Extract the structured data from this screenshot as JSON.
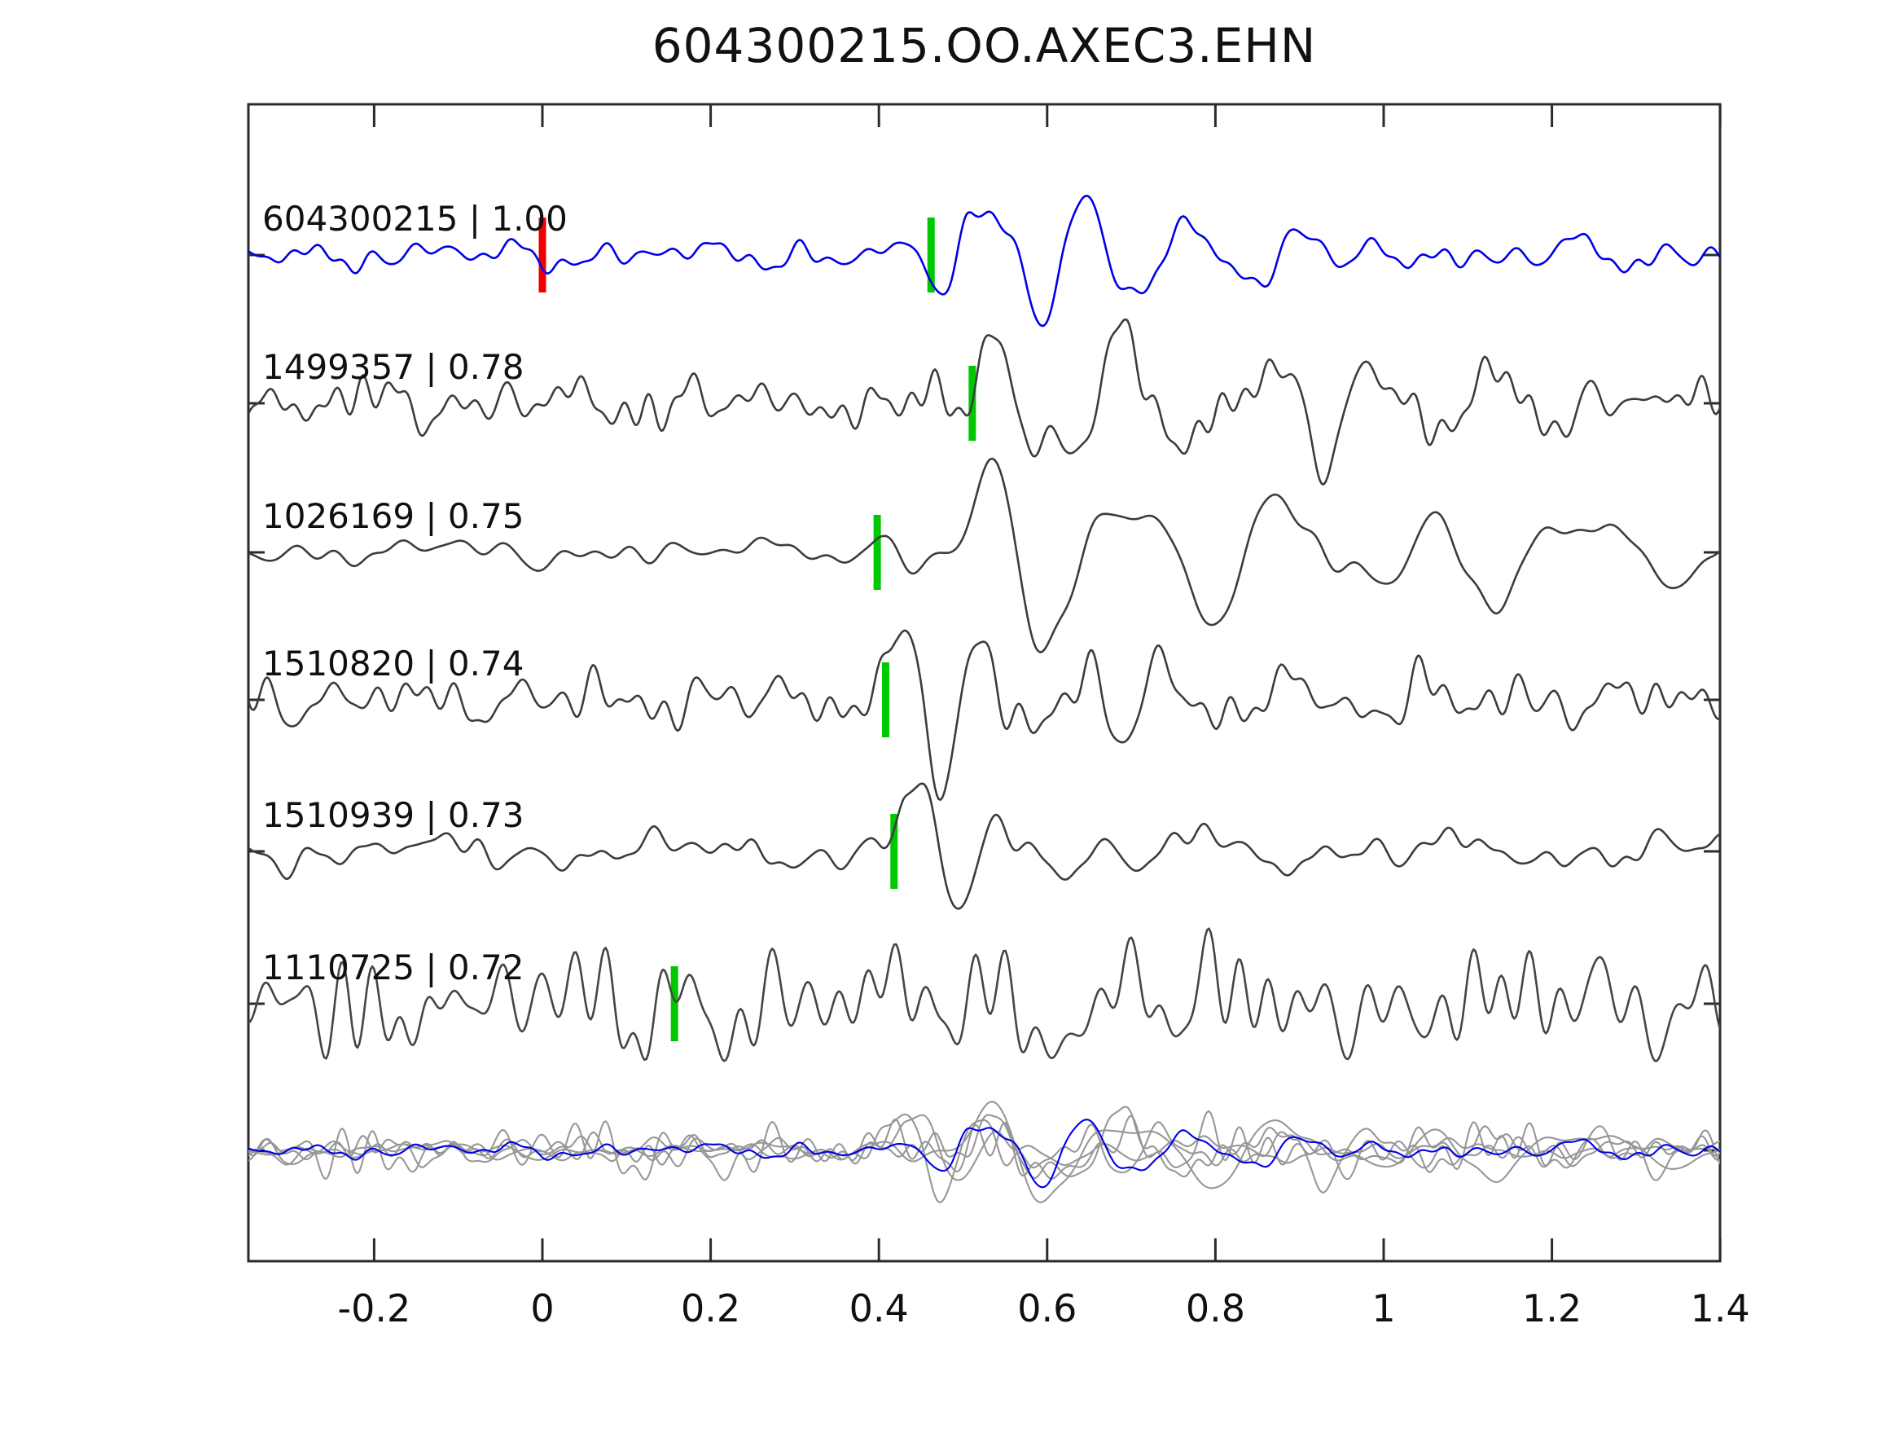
{
  "title": "604300215.OO.AXEC3.EHN",
  "chart_data": {
    "type": "line",
    "subtype": "seismic-waveform-stack",
    "x_range": [
      -0.3495,
      1.4
    ],
    "x_ticks": [
      {
        "value": -0.2,
        "label": "-0.2"
      },
      {
        "value": 0,
        "label": "0"
      },
      {
        "value": 0.2,
        "label": "0.2"
      },
      {
        "value": 0.4,
        "label": "0.4"
      },
      {
        "value": 0.6,
        "label": "0.6"
      },
      {
        "value": 0.8,
        "label": "0.8"
      },
      {
        "value": 1,
        "label": "1"
      },
      {
        "value": 1.2,
        "label": "1.2"
      },
      {
        "value": 1.4,
        "label": "1.4"
      }
    ],
    "grid": false,
    "box_color": "#2b2b2b",
    "label_color": "#101010",
    "traces": [
      {
        "id": "604300215",
        "correlation": "1.00",
        "label": "604300215 | 1.00",
        "color": "#0000e8",
        "pick": {
          "time": 0.462,
          "color": "#00c800"
        },
        "origin_pick": {
          "time": 0.0,
          "color": "#ee0000"
        },
        "synth": {
          "seed": 11,
          "noise_amp": 6.5,
          "noise_freq": 11,
          "bursts": [
            {
              "t0": 0.44,
              "rise": 0.065,
              "decay": 0.17,
              "amp": 112,
              "freq": 8.5,
              "phase": 3.1416
            },
            {
              "t0": 0.62,
              "rise": 0.1,
              "decay": 0.3,
              "amp": 34,
              "freq": 7.0,
              "phase": 0.7
            }
          ]
        }
      },
      {
        "id": "1499357",
        "correlation": "0.78",
        "label": "1499357 | 0.78",
        "color": "#3c3c3c",
        "pick": {
          "time": 0.511,
          "color": "#00c800"
        },
        "synth": {
          "seed": 22,
          "noise_amp": 13,
          "noise_freq": 12,
          "bursts": [
            {
              "t0": 0.33,
              "rise": 0.05,
              "decay": 0.1,
              "amp": 26,
              "freq": 9.0,
              "phase": 0.4
            },
            {
              "t0": 0.5,
              "rise": 0.055,
              "decay": 0.28,
              "amp": 125,
              "freq": 6.5,
              "phase": 0.0
            },
            {
              "t0": 0.85,
              "rise": 0.1,
              "decay": 0.25,
              "amp": 35,
              "freq": 7.5,
              "phase": 1.2
            }
          ]
        }
      },
      {
        "id": "1026169",
        "correlation": "0.75",
        "label": "1026169 | 0.75",
        "color": "#3c3c3c",
        "pick": {
          "time": 0.398,
          "color": "#00c800"
        },
        "synth": {
          "seed": 33,
          "noise_amp": 6,
          "noise_freq": 8,
          "bursts": [
            {
              "t0": 0.35,
              "rise": 0.05,
              "decay": 0.09,
              "amp": 26,
              "freq": 6.0,
              "phase": 0.3
            },
            {
              "t0": 0.47,
              "rise": 0.09,
              "decay": 0.45,
              "amp": 125,
              "freq": 5.4,
              "phase": 0.0
            },
            {
              "t0": 1.0,
              "rise": 0.12,
              "decay": 0.25,
              "amp": 40,
              "freq": 4.5,
              "phase": 1.8
            }
          ]
        }
      },
      {
        "id": "1510820",
        "correlation": "0.74",
        "label": "1510820 | 0.74",
        "color": "#3c3c3c",
        "pick": {
          "time": 0.408,
          "color": "#00c800"
        },
        "synth": {
          "seed": 44,
          "noise_amp": 12,
          "noise_freq": 11,
          "bursts": [
            {
              "t0": 0.385,
              "rise": 0.035,
              "decay": 0.13,
              "amp": 138,
              "freq": 8.5,
              "phase": 0.0
            },
            {
              "t0": 0.62,
              "rise": 0.1,
              "decay": 0.28,
              "amp": 42,
              "freq": 7.0,
              "phase": 2.1
            }
          ]
        }
      },
      {
        "id": "1510939",
        "correlation": "0.73",
        "label": "1510939 | 0.73",
        "color": "#3c3c3c",
        "pick": {
          "time": 0.418,
          "color": "#00c800"
        },
        "synth": {
          "seed": 55,
          "noise_amp": 9,
          "noise_freq": 10,
          "bursts": [
            {
              "t0": 0.4,
              "rise": 0.03,
              "decay": 0.11,
              "amp": 130,
              "freq": 8.0,
              "phase": 0.0
            },
            {
              "t0": 0.62,
              "rise": 0.12,
              "decay": 0.22,
              "amp": 26,
              "freq": 6.5,
              "phase": 1.0
            }
          ]
        }
      },
      {
        "id": "1110725",
        "correlation": "0.72",
        "label": "1110725 | 0.72",
        "color": "#454545",
        "pick": {
          "time": 0.157,
          "color": "#00c800"
        },
        "synth": {
          "seed": 66,
          "noise_amp": 26,
          "noise_freq": 10,
          "bursts": [
            {
              "t0": -0.36,
              "rise": 0.05,
              "decay": 0.3,
              "amp": 36,
              "freq": 8.0,
              "phase": 2.5
            },
            {
              "t0": 0.05,
              "rise": 0.06,
              "decay": 0.16,
              "amp": 30,
              "freq": 9.0,
              "phase": 0.9
            },
            {
              "t0": 0.53,
              "rise": 0.08,
              "decay": 0.26,
              "amp": 80,
              "freq": 7.5,
              "phase": 0.2
            }
          ]
        }
      }
    ],
    "overlay": {
      "description": "all traces superimposed",
      "scale": 0.52,
      "gray_color": "#979797",
      "highlight_id": "604300215",
      "highlight_color": "#0000e8"
    }
  }
}
